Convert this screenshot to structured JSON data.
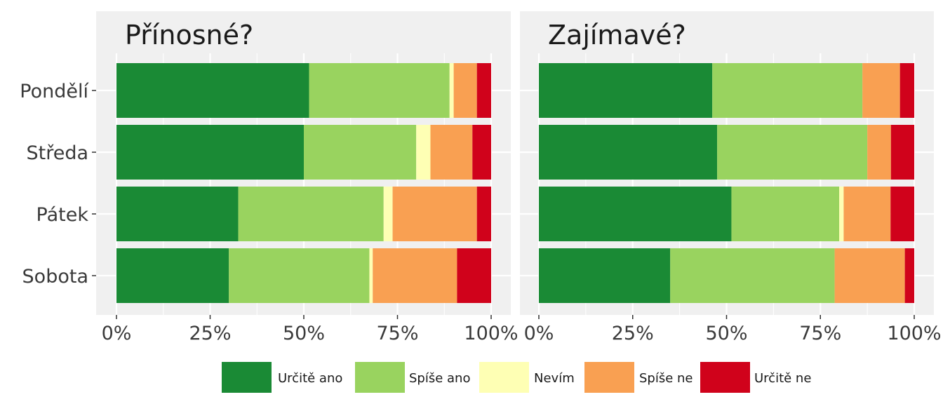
{
  "chart_data": {
    "type": "bar",
    "orientation": "horizontal",
    "stacked": true,
    "categories": [
      "Pondělí",
      "Středa",
      "Pátek",
      "Sobota"
    ],
    "x_ticks": [
      "0%",
      "25%",
      "50%",
      "75%",
      "100%"
    ],
    "xlim": [
      0,
      100
    ],
    "grid": true,
    "legend_position": "bottom",
    "legend": [
      {
        "name": "Určitě ano",
        "color": "#1a8a35"
      },
      {
        "name": "Spíše ano",
        "color": "#99d35f"
      },
      {
        "name": "Nevím",
        "color": "#feffb4"
      },
      {
        "name": "Spíše ne",
        "color": "#f9a052"
      },
      {
        "name": "Určitě ne",
        "color": "#d0021b"
      }
    ],
    "panels": [
      {
        "title": "Přínosné?",
        "series": [
          {
            "name": "Určitě ano",
            "values": [
              51.4,
              50.0,
              32.5,
              30.0
            ]
          },
          {
            "name": "Spíše ano",
            "values": [
              37.5,
              30.0,
              38.8,
              37.5
            ]
          },
          {
            "name": "Nevím",
            "values": [
              1.1,
              3.8,
              2.4,
              0.9
            ]
          },
          {
            "name": "Spíše ne",
            "values": [
              6.2,
              11.2,
              22.5,
              22.5
            ]
          },
          {
            "name": "Určitě ne",
            "values": [
              3.8,
              5.0,
              3.8,
              9.1
            ]
          }
        ]
      },
      {
        "title": "Zajímavé?",
        "series": [
          {
            "name": "Určitě ano",
            "values": [
              46.2,
              47.5,
              51.3,
              35.0
            ]
          },
          {
            "name": "Spíše ano",
            "values": [
              40.0,
              40.0,
              28.7,
              43.8
            ]
          },
          {
            "name": "Nevím",
            "values": [
              0.0,
              0.0,
              1.2,
              0.0
            ]
          },
          {
            "name": "Spíše ne",
            "values": [
              10.0,
              6.3,
              12.5,
              18.7
            ]
          },
          {
            "name": "Určitě ne",
            "values": [
              3.8,
              6.2,
              6.3,
              2.5
            ]
          }
        ]
      }
    ]
  }
}
